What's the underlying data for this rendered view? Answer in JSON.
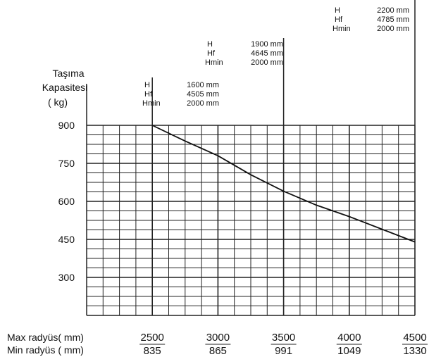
{
  "chart_data": {
    "type": "line",
    "ylabel_lines": [
      "Taşıma",
      "Kapasitesi",
      "(  kg)"
    ],
    "yticks": [
      900,
      750,
      600,
      450,
      300
    ],
    "ylim": [
      150,
      900
    ],
    "xlim": [
      2000,
      4500
    ],
    "grid": true,
    "x_row_labels": [
      "Max radyüs(  mm)",
      "Min radyüs (  mm)"
    ],
    "x_max_radius": [
      "2500",
      "3000",
      "3500",
      "4000",
      "4500"
    ],
    "x_min_radius": [
      "835",
      "865",
      "991",
      "1049",
      "1330"
    ],
    "series": [
      {
        "x": [
          2500,
          2750,
          3000,
          3250,
          3500,
          3750,
          4000,
          4250,
          4500
        ],
        "y": [
          900,
          838,
          780,
          705,
          640,
          585,
          540,
          490,
          440
        ]
      }
    ],
    "mast_annotations": [
      {
        "x": 2500,
        "lines": [
          [
            "H",
            "1600 mm"
          ],
          [
            "Hf",
            "4505 mm"
          ],
          [
            "Hmin",
            "2000 mm"
          ]
        ]
      },
      {
        "x": 3500,
        "lines": [
          [
            "H",
            "1900 mm"
          ],
          [
            "Hf",
            "4645 mm"
          ],
          [
            "Hmin",
            "2000 mm"
          ]
        ]
      },
      {
        "x": 4500,
        "lines": [
          [
            "H",
            "2200 mm"
          ],
          [
            "Hf",
            "4785 mm"
          ],
          [
            "Hmin",
            "2000 mm"
          ]
        ]
      }
    ]
  }
}
